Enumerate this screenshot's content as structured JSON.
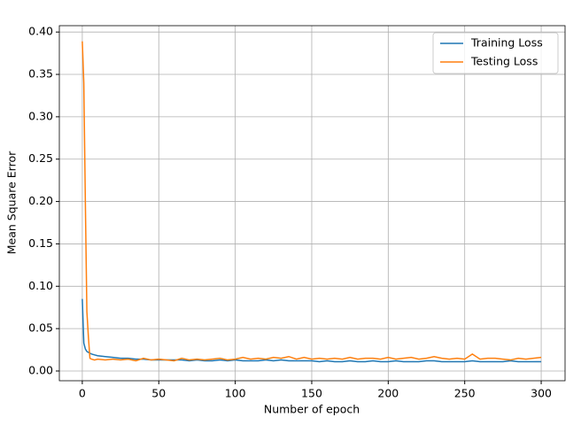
{
  "chart_data": {
    "type": "line",
    "xlabel": "Number of epoch",
    "ylabel": "Mean Square Error",
    "x": [
      0,
      1,
      2,
      3,
      4,
      5,
      6,
      8,
      10,
      15,
      20,
      25,
      30,
      35,
      40,
      45,
      50,
      55,
      60,
      65,
      70,
      75,
      80,
      85,
      90,
      95,
      100,
      105,
      110,
      115,
      120,
      125,
      130,
      135,
      140,
      145,
      150,
      155,
      160,
      165,
      170,
      175,
      180,
      185,
      190,
      195,
      200,
      205,
      210,
      215,
      220,
      225,
      230,
      235,
      240,
      245,
      250,
      255,
      260,
      265,
      270,
      275,
      280,
      285,
      290,
      295,
      300
    ],
    "series": [
      {
        "name": "Training Loss",
        "color": "#1f77b4",
        "values": [
          0.085,
          0.033,
          0.026,
          0.023,
          0.022,
          0.021,
          0.02,
          0.019,
          0.018,
          0.017,
          0.016,
          0.015,
          0.015,
          0.014,
          0.014,
          0.013,
          0.013,
          0.013,
          0.013,
          0.013,
          0.012,
          0.013,
          0.012,
          0.012,
          0.013,
          0.012,
          0.013,
          0.012,
          0.012,
          0.012,
          0.013,
          0.012,
          0.013,
          0.012,
          0.012,
          0.012,
          0.012,
          0.011,
          0.012,
          0.011,
          0.011,
          0.012,
          0.011,
          0.011,
          0.012,
          0.011,
          0.011,
          0.012,
          0.011,
          0.011,
          0.011,
          0.012,
          0.012,
          0.011,
          0.011,
          0.011,
          0.011,
          0.012,
          0.011,
          0.011,
          0.011,
          0.011,
          0.012,
          0.011,
          0.011,
          0.011,
          0.011
        ]
      },
      {
        "name": "Testing Loss",
        "color": "#ff7f0e",
        "values": [
          0.389,
          0.34,
          0.2,
          0.07,
          0.04,
          0.015,
          0.014,
          0.013,
          0.014,
          0.013,
          0.014,
          0.013,
          0.014,
          0.012,
          0.015,
          0.013,
          0.014,
          0.013,
          0.012,
          0.015,
          0.013,
          0.014,
          0.013,
          0.014,
          0.015,
          0.013,
          0.014,
          0.016,
          0.014,
          0.015,
          0.014,
          0.016,
          0.015,
          0.017,
          0.014,
          0.016,
          0.014,
          0.015,
          0.014,
          0.015,
          0.014,
          0.016,
          0.014,
          0.015,
          0.015,
          0.014,
          0.016,
          0.014,
          0.015,
          0.016,
          0.014,
          0.015,
          0.017,
          0.015,
          0.014,
          0.015,
          0.014,
          0.02,
          0.014,
          0.015,
          0.015,
          0.014,
          0.013,
          0.015,
          0.014,
          0.015,
          0.016
        ]
      }
    ],
    "xlim": [
      -15,
      315.6
    ],
    "ylim": [
      -0.0115,
      0.4075
    ],
    "xticks": [
      0,
      50,
      100,
      150,
      200,
      250,
      300
    ],
    "yticks": [
      {
        "value": 0,
        "label": "0.00"
      },
      {
        "value": 0.05,
        "label": "0.05"
      },
      {
        "value": 0.1,
        "label": "0.10"
      },
      {
        "value": 0.15,
        "label": "0.15"
      },
      {
        "value": 0.2,
        "label": "0.20"
      },
      {
        "value": 0.25,
        "label": "0.25"
      },
      {
        "value": 0.3,
        "label": "0.30"
      },
      {
        "value": 0.35,
        "label": "0.35"
      },
      {
        "value": 0.4,
        "label": "0.40"
      }
    ],
    "grid": true,
    "legend": "upper right"
  }
}
